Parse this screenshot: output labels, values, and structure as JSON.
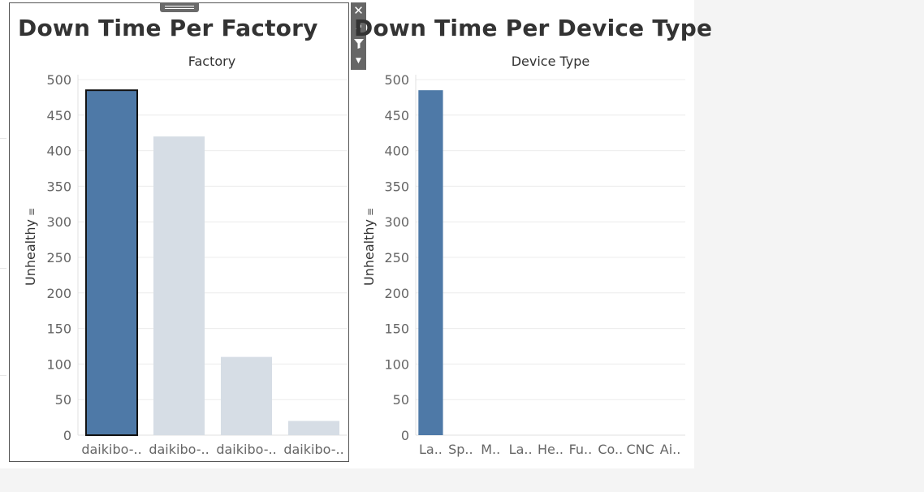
{
  "worksheets": [
    {
      "title": "Down Time Per Factory"
    },
    {
      "title": "Down Time Per Device Type"
    }
  ],
  "chart_data": [
    {
      "type": "bar",
      "title": "Down Time Per Factory",
      "column_header": "Factory",
      "ylabel": "Unhealthy",
      "ylim": [
        0,
        500
      ],
      "yticks": [
        0,
        50,
        100,
        150,
        200,
        250,
        300,
        350,
        400,
        450,
        500
      ],
      "categories": [
        "daikibo-..",
        "daikibo-..",
        "daikibo-..",
        "daikibo-.."
      ],
      "values": [
        485,
        420,
        110,
        20
      ],
      "highlighted_index": 0,
      "colors": {
        "highlight": "#4e79a7",
        "muted": "#d6dde5"
      },
      "grid": true
    },
    {
      "type": "bar",
      "title": "Down Time Per Device Type",
      "column_header": "Device Type",
      "ylabel": "Unhealthy",
      "ylim": [
        0,
        500
      ],
      "yticks": [
        0,
        50,
        100,
        150,
        200,
        250,
        300,
        350,
        400,
        450,
        500
      ],
      "categories": [
        "La..",
        "Sp..",
        "M..",
        "La..",
        "He..",
        "Fu..",
        "Co..",
        "CNC",
        "Ai.."
      ],
      "values": [
        485,
        0,
        0,
        0,
        0,
        0,
        0,
        0,
        0
      ],
      "colors": {
        "bar": "#4e79a7"
      },
      "grid": true
    }
  ],
  "toolbar": {
    "icons": [
      "close-icon",
      "popout-icon",
      "filter-icon",
      "more-options-icon"
    ]
  }
}
